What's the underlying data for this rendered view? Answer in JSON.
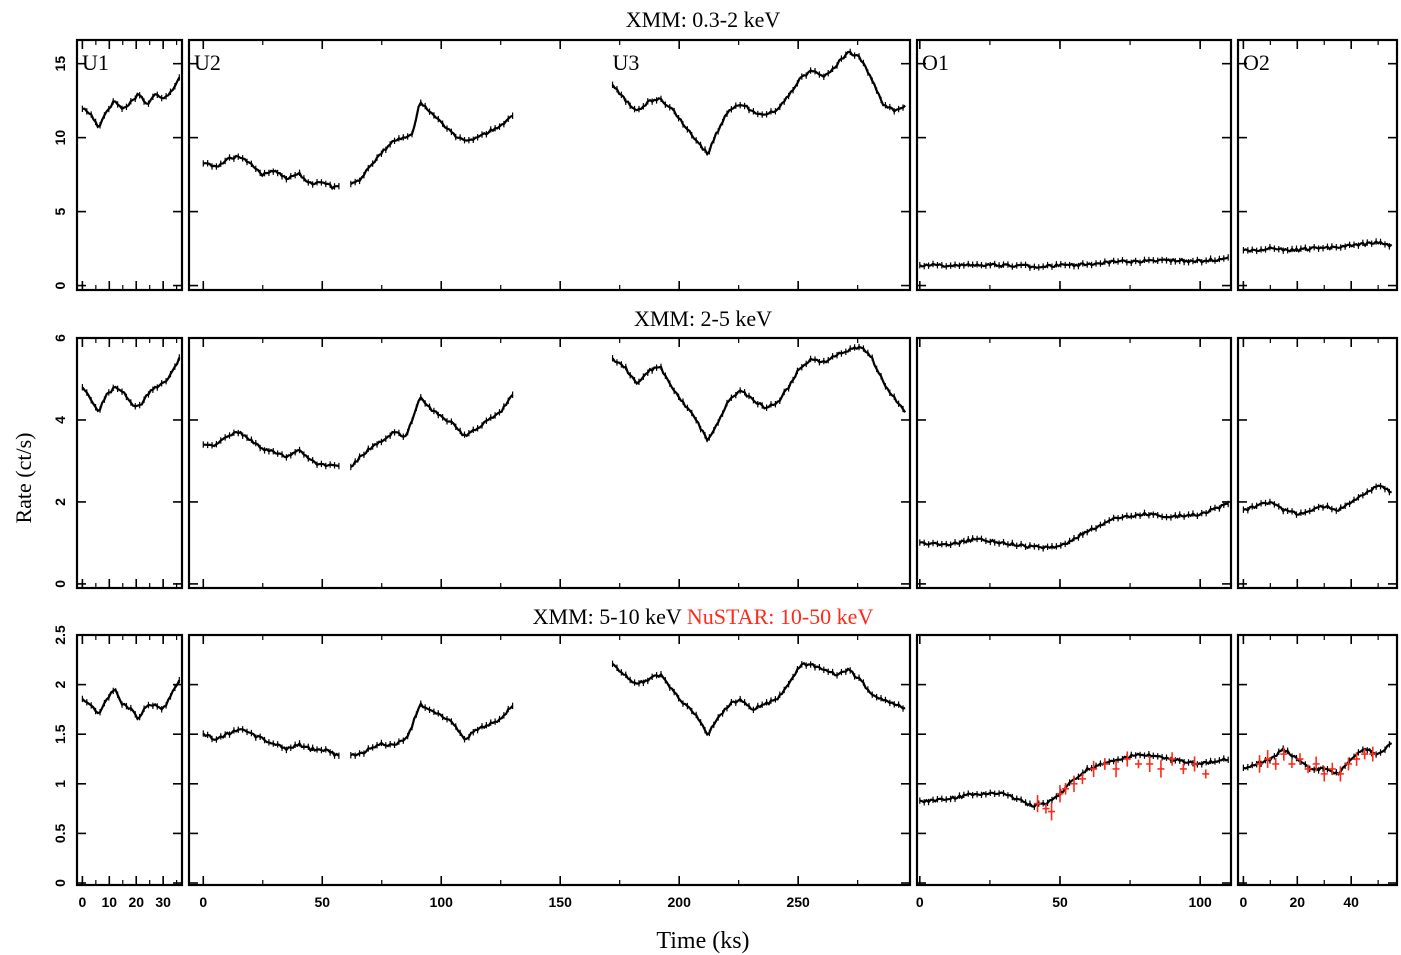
{
  "ylabel": "Rate (ct/s)",
  "xlabel": "Time (ks)",
  "colors": {
    "xmm": "#000000",
    "nustar": "#ff2a1a"
  },
  "row_titles": [
    [
      {
        "text": "XMM: 0.3-2 keV",
        "color": "#000000"
      }
    ],
    [
      {
        "text": "XMM: 2-5 keV",
        "color": "#000000"
      }
    ],
    [
      {
        "text": "XMM: 5-10 keV",
        "color": "#000000"
      },
      {
        "text": "NuSTAR: 10-50 keV",
        "color": "#ff2a1a"
      }
    ]
  ],
  "panel_labels": [
    {
      "col": 0,
      "text": "U1"
    },
    {
      "col": 1,
      "text": "U2"
    },
    {
      "col": 1,
      "text": "U3",
      "at_x": 172
    },
    {
      "col": 2,
      "text": "O1"
    },
    {
      "col": 3,
      "text": "O2"
    }
  ],
  "columns": [
    {
      "xlim": [
        -2,
        37
      ],
      "xticks": [
        0,
        10,
        20,
        30
      ],
      "xticklabels": [
        "0",
        "10",
        "20",
        "30"
      ]
    },
    {
      "xlim": [
        -6,
        297
      ],
      "xticks": [
        0,
        50,
        100,
        150,
        200,
        250
      ],
      "xticklabels": [
        "0",
        "50",
        "100",
        "150",
        "200",
        "250"
      ]
    },
    {
      "xlim": [
        -1,
        111
      ],
      "xticks": [
        0,
        50,
        100
      ],
      "xticklabels": [
        "0",
        "50",
        "100"
      ]
    },
    {
      "xlim": [
        -2,
        57
      ],
      "xticks": [
        0,
        20,
        40
      ],
      "xticklabels": [
        "0",
        "20",
        "40"
      ]
    }
  ],
  "rows": [
    {
      "ylim": [
        -0.3,
        16.6
      ],
      "yticks": [
        0,
        5,
        10,
        15
      ],
      "yticklabels": [
        "0",
        "5",
        "10",
        "15"
      ]
    },
    {
      "ylim": [
        -0.1,
        6.0
      ],
      "yticks": [
        0,
        2,
        4,
        6
      ],
      "yticklabels": [
        "0",
        "2",
        "4",
        "6"
      ]
    },
    {
      "ylim": [
        -0.02,
        2.5
      ],
      "yticks": [
        0,
        0.5,
        1,
        1.5,
        2,
        2.5
      ],
      "yticklabels": [
        "0",
        "0.5",
        "1",
        "1.5",
        "2",
        "2.5"
      ]
    }
  ],
  "chart_data": {
    "type": "scatter",
    "series": [
      {
        "row": 0,
        "col": 0,
        "instrument": "XMM",
        "segment": "U1",
        "x": [
          0,
          3,
          6,
          9,
          12,
          15,
          18,
          21,
          24,
          27,
          30,
          33,
          36
        ],
        "y": [
          12.0,
          11.6,
          10.7,
          11.8,
          12.5,
          11.9,
          12.4,
          13.0,
          12.2,
          12.9,
          12.7,
          13.1,
          14.1
        ]
      },
      {
        "row": 0,
        "col": 1,
        "instrument": "XMM",
        "segment": "U2a",
        "x": [
          0,
          5,
          10,
          15,
          20,
          25,
          30,
          35,
          40,
          45,
          50,
          55,
          57
        ],
        "y": [
          8.3,
          8.0,
          8.5,
          8.8,
          8.2,
          7.5,
          7.8,
          7.2,
          7.6,
          6.9,
          7.0,
          6.6,
          6.8
        ]
      },
      {
        "row": 0,
        "col": 1,
        "instrument": "XMM",
        "segment": "U2b",
        "x": [
          62,
          66,
          70,
          75,
          80,
          85,
          88,
          91,
          95,
          100,
          105,
          110,
          115,
          120,
          125,
          130
        ],
        "y": [
          6.9,
          7.2,
          8.0,
          9.0,
          9.8,
          10.0,
          10.3,
          12.4,
          11.8,
          11.0,
          10.2,
          9.8,
          10.0,
          10.4,
          10.8,
          11.5
        ]
      },
      {
        "row": 0,
        "col": 1,
        "instrument": "XMM",
        "segment": "U3",
        "x": [
          172,
          177,
          182,
          187,
          192,
          197,
          202,
          207,
          212,
          216,
          221,
          226,
          231,
          236,
          241,
          246,
          251,
          256,
          261,
          266,
          271,
          276,
          281,
          286,
          291,
          295
        ],
        "y": [
          13.6,
          12.6,
          11.8,
          12.4,
          12.6,
          11.9,
          10.9,
          9.8,
          8.9,
          10.4,
          11.9,
          12.3,
          11.8,
          11.5,
          11.9,
          12.8,
          14.1,
          14.5,
          14.1,
          14.9,
          15.8,
          15.4,
          13.9,
          12.2,
          11.8,
          12.1
        ]
      },
      {
        "row": 0,
        "col": 2,
        "instrument": "XMM",
        "segment": "O1",
        "x": [
          0,
          10,
          20,
          30,
          40,
          50,
          60,
          70,
          80,
          90,
          100,
          110
        ],
        "y": [
          1.4,
          1.35,
          1.4,
          1.35,
          1.3,
          1.35,
          1.45,
          1.6,
          1.65,
          1.7,
          1.65,
          1.85
        ]
      },
      {
        "row": 0,
        "col": 3,
        "instrument": "XMM",
        "segment": "O2",
        "x": [
          0,
          5,
          10,
          15,
          20,
          25,
          30,
          35,
          40,
          45,
          50,
          55
        ],
        "y": [
          2.4,
          2.3,
          2.5,
          2.4,
          2.4,
          2.5,
          2.5,
          2.6,
          2.7,
          2.8,
          2.9,
          2.7
        ]
      },
      {
        "row": 1,
        "col": 0,
        "instrument": "XMM",
        "segment": "U1",
        "x": [
          0,
          3,
          6,
          9,
          12,
          15,
          18,
          21,
          24,
          27,
          30,
          33,
          36
        ],
        "y": [
          4.8,
          4.5,
          4.2,
          4.6,
          4.8,
          4.7,
          4.4,
          4.3,
          4.6,
          4.8,
          4.9,
          5.1,
          5.5
        ]
      },
      {
        "row": 1,
        "col": 1,
        "instrument": "XMM",
        "segment": "U2a",
        "x": [
          0,
          5,
          10,
          15,
          20,
          25,
          30,
          35,
          40,
          45,
          50,
          55,
          57
        ],
        "y": [
          3.4,
          3.4,
          3.6,
          3.7,
          3.5,
          3.3,
          3.2,
          3.1,
          3.3,
          3.0,
          2.9,
          2.9,
          2.85
        ]
      },
      {
        "row": 1,
        "col": 1,
        "instrument": "XMM",
        "segment": "U2b",
        "x": [
          62,
          66,
          70,
          75,
          80,
          85,
          88,
          91,
          95,
          100,
          105,
          110,
          115,
          120,
          125,
          130
        ],
        "y": [
          2.85,
          3.1,
          3.3,
          3.5,
          3.7,
          3.6,
          4.0,
          4.6,
          4.3,
          4.1,
          3.9,
          3.6,
          3.8,
          4.0,
          4.2,
          4.6
        ]
      },
      {
        "row": 1,
        "col": 1,
        "instrument": "XMM",
        "segment": "U3",
        "x": [
          172,
          177,
          182,
          187,
          192,
          197,
          202,
          207,
          212,
          216,
          221,
          226,
          231,
          236,
          241,
          246,
          251,
          256,
          261,
          266,
          271,
          276,
          281,
          286,
          291,
          295
        ],
        "y": [
          5.5,
          5.3,
          4.9,
          5.2,
          5.3,
          4.8,
          4.4,
          4.0,
          3.5,
          3.9,
          4.5,
          4.7,
          4.5,
          4.3,
          4.4,
          4.8,
          5.3,
          5.5,
          5.4,
          5.6,
          5.7,
          5.8,
          5.5,
          4.9,
          4.5,
          4.2
        ]
      },
      {
        "row": 1,
        "col": 2,
        "instrument": "XMM",
        "segment": "O1",
        "x": [
          0,
          10,
          20,
          30,
          40,
          50,
          60,
          70,
          80,
          90,
          100,
          110
        ],
        "y": [
          1.0,
          0.95,
          1.1,
          1.0,
          0.9,
          0.9,
          1.3,
          1.6,
          1.7,
          1.65,
          1.7,
          1.95
        ]
      },
      {
        "row": 1,
        "col": 3,
        "instrument": "XMM",
        "segment": "O2",
        "x": [
          0,
          5,
          10,
          15,
          20,
          25,
          30,
          35,
          40,
          45,
          50,
          55
        ],
        "y": [
          1.8,
          1.9,
          2.0,
          1.8,
          1.7,
          1.8,
          1.9,
          1.8,
          2.0,
          2.2,
          2.4,
          2.25
        ]
      },
      {
        "row": 2,
        "col": 0,
        "instrument": "XMM",
        "segment": "U1",
        "x": [
          0,
          3,
          6,
          9,
          12,
          15,
          18,
          21,
          24,
          27,
          30,
          33,
          36
        ],
        "y": [
          1.85,
          1.8,
          1.7,
          1.85,
          1.95,
          1.8,
          1.75,
          1.65,
          1.8,
          1.8,
          1.75,
          1.9,
          2.05
        ]
      },
      {
        "row": 2,
        "col": 1,
        "instrument": "XMM",
        "segment": "U2a",
        "x": [
          0,
          5,
          10,
          15,
          20,
          25,
          30,
          35,
          40,
          45,
          50,
          55,
          57
        ],
        "y": [
          1.5,
          1.45,
          1.5,
          1.55,
          1.5,
          1.45,
          1.4,
          1.35,
          1.4,
          1.35,
          1.35,
          1.3,
          1.28
        ]
      },
      {
        "row": 2,
        "col": 1,
        "instrument": "XMM",
        "segment": "U2b",
        "x": [
          62,
          66,
          70,
          75,
          80,
          85,
          88,
          91,
          95,
          100,
          105,
          110,
          115,
          120,
          125,
          130
        ],
        "y": [
          1.28,
          1.3,
          1.35,
          1.4,
          1.38,
          1.45,
          1.6,
          1.8,
          1.75,
          1.7,
          1.6,
          1.45,
          1.55,
          1.6,
          1.65,
          1.8
        ]
      },
      {
        "row": 2,
        "col": 1,
        "instrument": "XMM",
        "segment": "U3",
        "x": [
          172,
          177,
          182,
          187,
          192,
          197,
          202,
          207,
          212,
          216,
          221,
          226,
          231,
          236,
          241,
          246,
          251,
          256,
          261,
          266,
          271,
          276,
          281,
          286,
          291,
          295
        ],
        "y": [
          2.2,
          2.1,
          2.0,
          2.05,
          2.1,
          1.95,
          1.8,
          1.7,
          1.5,
          1.65,
          1.8,
          1.85,
          1.75,
          1.8,
          1.85,
          2.0,
          2.2,
          2.2,
          2.15,
          2.1,
          2.15,
          2.05,
          1.9,
          1.85,
          1.8,
          1.75
        ]
      },
      {
        "row": 2,
        "col": 2,
        "instrument": "XMM",
        "segment": "O1",
        "x": [
          0,
          10,
          20,
          30,
          40,
          45,
          50,
          55,
          60,
          65,
          70,
          80,
          90,
          100,
          110
        ],
        "y": [
          0.82,
          0.85,
          0.9,
          0.9,
          0.78,
          0.8,
          0.9,
          1.05,
          1.15,
          1.2,
          1.25,
          1.3,
          1.25,
          1.2,
          1.25
        ]
      },
      {
        "row": 2,
        "col": 3,
        "instrument": "XMM",
        "segment": "O2",
        "x": [
          0,
          5,
          10,
          15,
          20,
          25,
          30,
          35,
          40,
          45,
          50,
          55
        ],
        "y": [
          1.15,
          1.2,
          1.25,
          1.35,
          1.25,
          1.15,
          1.15,
          1.1,
          1.25,
          1.35,
          1.3,
          1.4
        ]
      },
      {
        "row": 2,
        "col": 2,
        "instrument": "NuSTAR",
        "segment": "O1",
        "color": "#ff2a1a",
        "x": [
          42,
          45,
          47,
          50,
          52,
          55,
          58,
          62,
          66,
          70,
          74,
          78,
          82,
          86,
          90,
          94,
          98,
          102
        ],
        "y": [
          0.8,
          0.75,
          0.72,
          0.9,
          0.95,
          1.0,
          1.05,
          1.15,
          1.2,
          1.15,
          1.25,
          1.2,
          1.2,
          1.15,
          1.25,
          1.15,
          1.2,
          1.1
        ]
      },
      {
        "row": 2,
        "col": 3,
        "instrument": "NuSTAR",
        "segment": "O2",
        "color": "#ff2a1a",
        "x": [
          6,
          9,
          12,
          15,
          18,
          21,
          24,
          27,
          30,
          33,
          36,
          39,
          42,
          45,
          48
        ],
        "y": [
          1.2,
          1.25,
          1.2,
          1.3,
          1.2,
          1.25,
          1.15,
          1.2,
          1.1,
          1.15,
          1.1,
          1.2,
          1.25,
          1.3,
          1.3
        ]
      }
    ]
  }
}
